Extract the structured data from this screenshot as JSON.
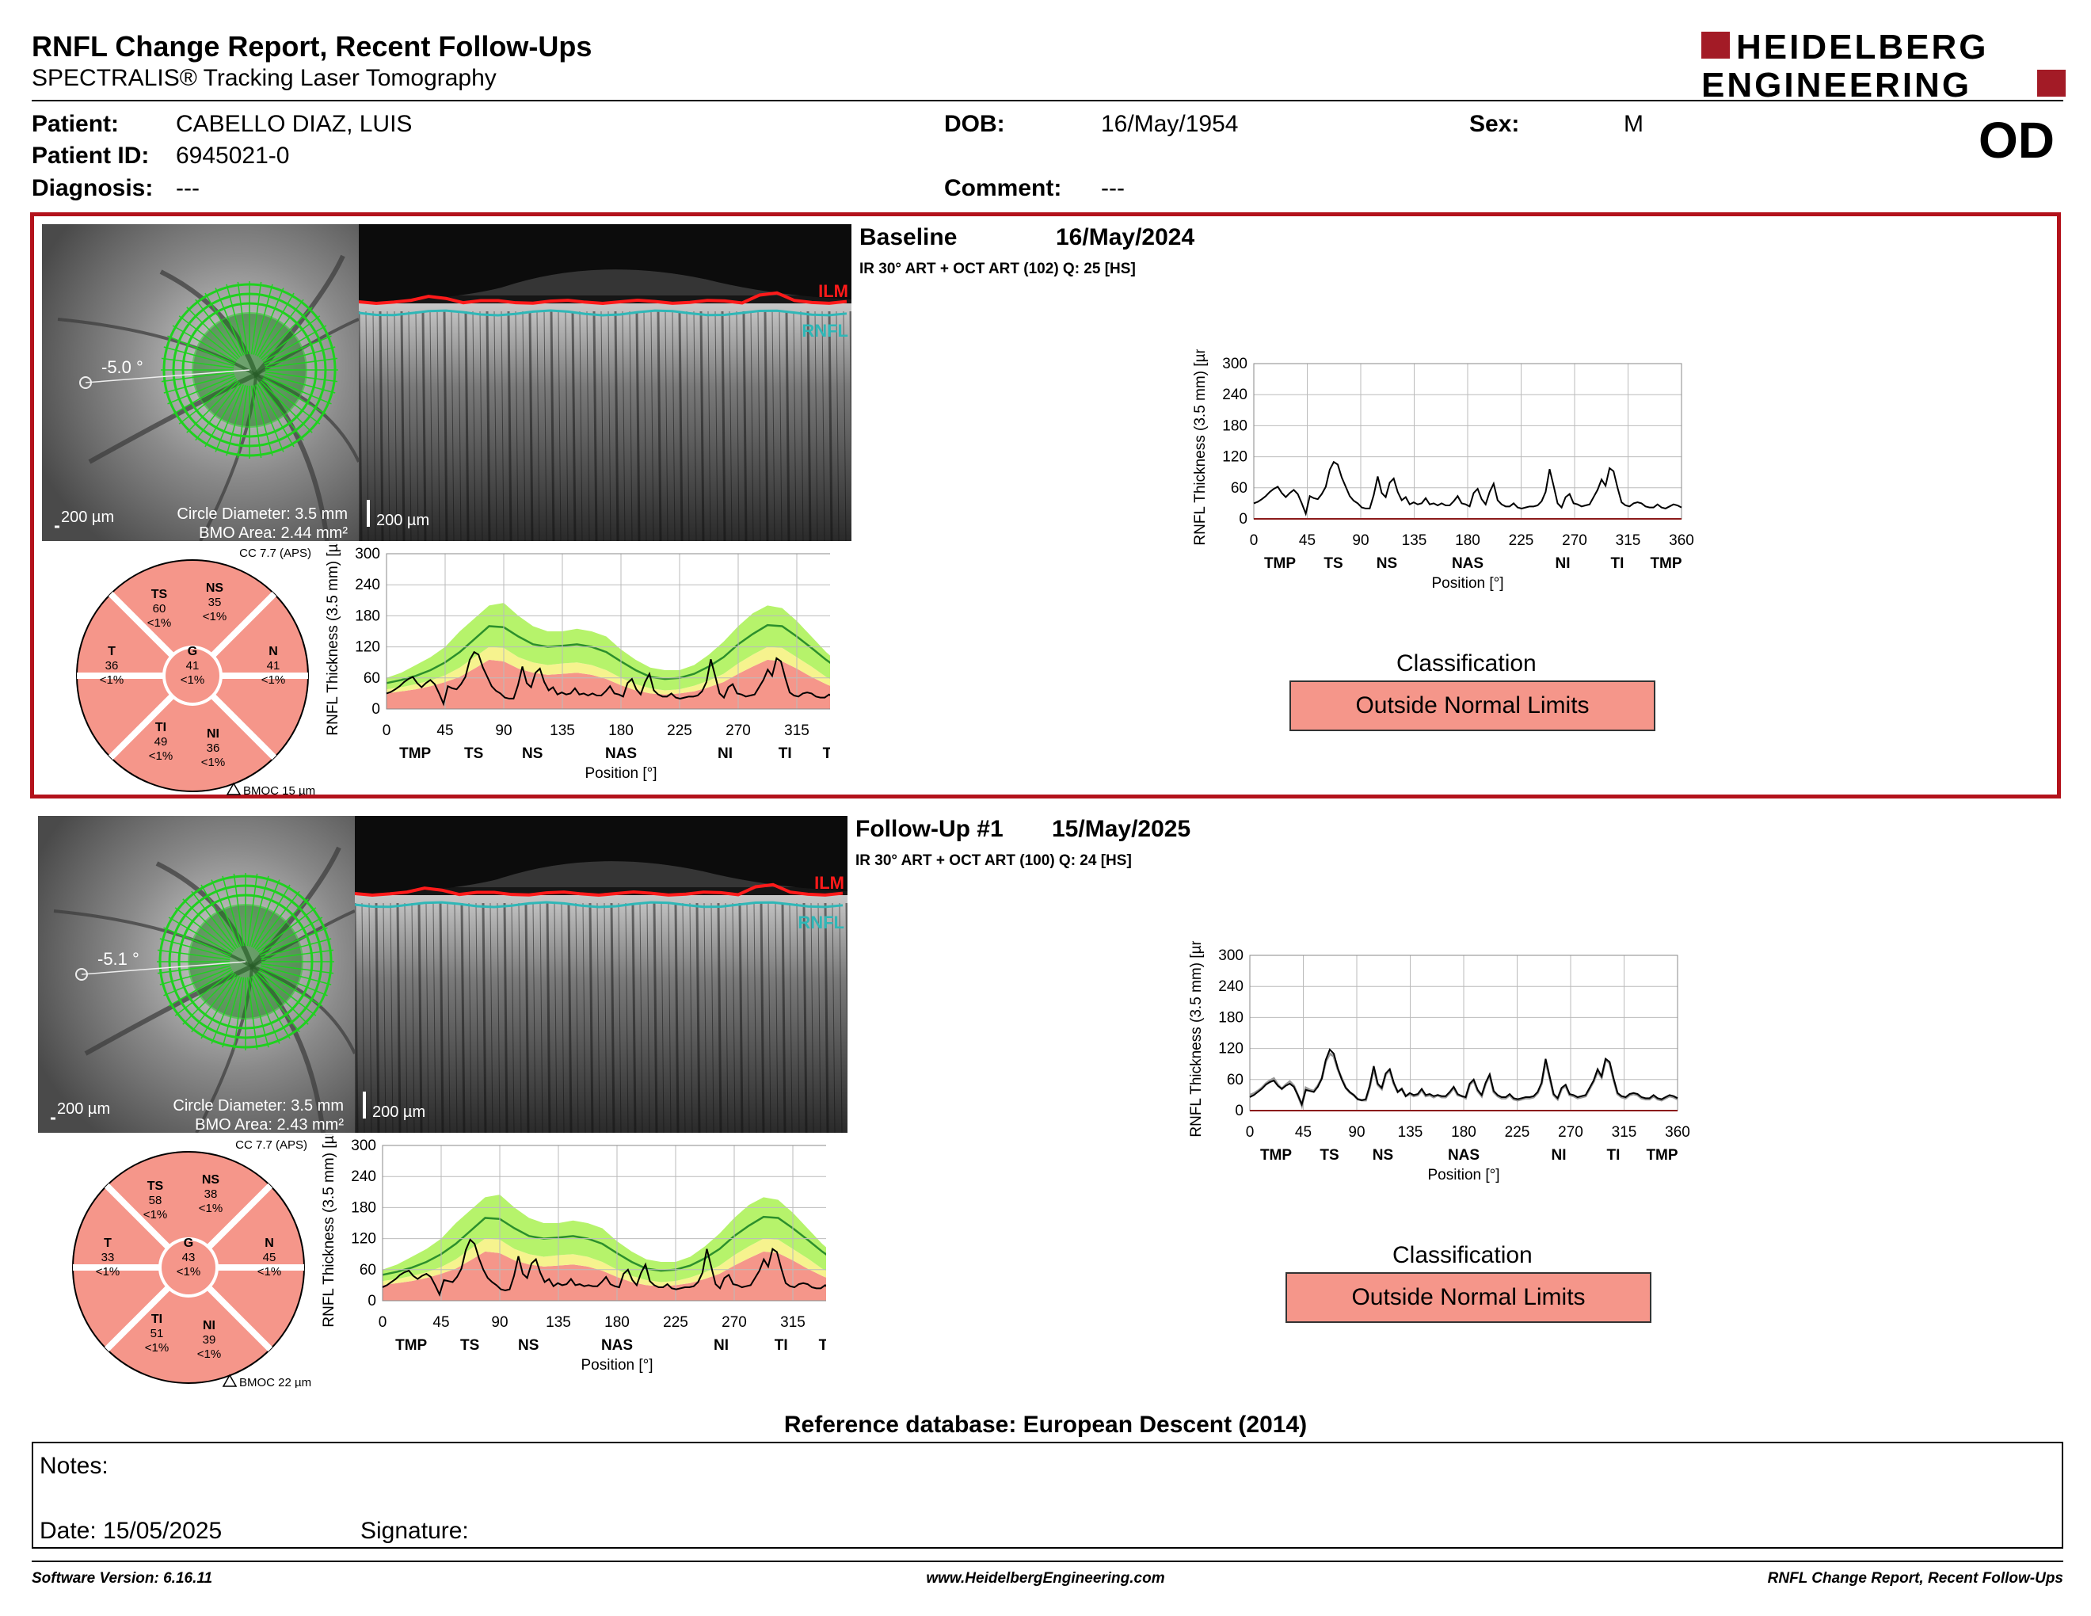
{
  "header": {
    "title": "RNFL Change Report, Recent Follow-Ups",
    "subtitle": "SPECTRALIS® Tracking Laser Tomography",
    "logo_line1": "HEIDELBERG",
    "logo_line2": "ENGINEERING",
    "eye": "OD"
  },
  "patient": {
    "patient_label": "Patient:",
    "patient_value": "CABELLO DIAZ, LUIS",
    "id_label": "Patient ID:",
    "id_value": "6945021-0",
    "diagnosis_label": "Diagnosis:",
    "diagnosis_value": "---",
    "dob_label": "DOB:",
    "dob_value": "16/May/1954",
    "comment_label": "Comment:",
    "comment_value": "---",
    "sex_label": "Sex:",
    "sex_value": "M"
  },
  "visits": [
    {
      "title": "Baseline",
      "date": "16/May/2024",
      "scan": "IR 30° ART + OCT ART (102) Q: 25 [HS]",
      "angle": "-5.0 °",
      "scale_fundus": "200 µm",
      "scale_oct": "200 µm",
      "circle": "Circle Diameter: 3.5 mm",
      "bmo": "BMO Area: 2.44 mm²",
      "cc": "CC 7.7 (APS)",
      "bmoc": "BMOC 15 µm",
      "ilm": "ILM",
      "rnfl": "RNFL",
      "sectors": {
        "TS": {
          "v": "60",
          "p": "<1%"
        },
        "NS": {
          "v": "35",
          "p": "<1%"
        },
        "T": {
          "v": "36",
          "p": "<1%"
        },
        "G": {
          "v": "41",
          "p": "<1%"
        },
        "N": {
          "v": "41",
          "p": "<1%"
        },
        "TI": {
          "v": "49",
          "p": "<1%"
        },
        "NI": {
          "v": "36",
          "p": "<1%"
        }
      },
      "classification_label": "Classification",
      "classification": "Outside Normal Limits",
      "thickness": [
        30,
        33,
        38,
        44,
        52,
        58,
        62,
        50,
        42,
        50,
        56,
        48,
        30,
        10,
        44,
        40,
        38,
        48,
        62,
        95,
        110,
        105,
        80,
        62,
        44,
        35,
        30,
        22,
        20,
        20,
        46,
        82,
        50,
        42,
        70,
        78,
        52,
        36,
        42,
        28,
        32,
        28,
        30,
        40,
        28,
        30,
        26,
        30,
        26,
        26,
        34,
        44,
        30,
        28,
        24,
        50,
        58,
        38,
        28,
        52,
        68,
        36,
        28,
        24,
        24,
        30,
        22,
        20,
        22,
        24,
        24,
        26,
        34,
        52,
        96,
        64,
        30,
        22,
        42,
        48,
        30,
        28,
        24,
        26,
        28,
        42,
        56,
        76,
        64,
        98,
        92,
        60,
        32,
        26,
        24,
        30,
        32,
        30,
        24,
        22,
        22,
        28,
        22,
        20,
        24,
        28,
        26,
        22
      ]
    },
    {
      "title": "Follow-Up #1",
      "date": "15/May/2025",
      "scan": "IR 30° ART + OCT ART (100) Q: 24 [HS]",
      "angle": "-5.1 °",
      "scale_fundus": "200 µm",
      "scale_oct": "200 µm",
      "circle": "Circle Diameter: 3.5 mm",
      "bmo": "BMO Area: 2.43 mm²",
      "cc": "CC 7.7 (APS)",
      "bmoc": "BMOC 22 µm",
      "ilm": "ILM",
      "rnfl": "RNFL",
      "sectors": {
        "TS": {
          "v": "58",
          "p": "<1%"
        },
        "NS": {
          "v": "38",
          "p": "<1%"
        },
        "T": {
          "v": "33",
          "p": "<1%"
        },
        "G": {
          "v": "43",
          "p": "<1%"
        },
        "N": {
          "v": "45",
          "p": "<1%"
        },
        "TI": {
          "v": "51",
          "p": "<1%"
        },
        "NI": {
          "v": "39",
          "p": "<1%"
        }
      },
      "classification_label": "Classification",
      "classification": "Outside Normal Limits",
      "thickness": [
        26,
        30,
        36,
        42,
        50,
        55,
        58,
        48,
        42,
        48,
        52,
        46,
        30,
        12,
        40,
        38,
        36,
        46,
        62,
        98,
        118,
        110,
        82,
        60,
        44,
        36,
        30,
        22,
        20,
        22,
        48,
        86,
        52,
        44,
        72,
        80,
        54,
        36,
        42,
        28,
        34,
        30,
        32,
        42,
        30,
        32,
        28,
        30,
        28,
        28,
        36,
        46,
        32,
        28,
        26,
        52,
        60,
        40,
        30,
        54,
        70,
        38,
        30,
        26,
        26,
        32,
        24,
        22,
        24,
        26,
        26,
        28,
        36,
        54,
        100,
        66,
        32,
        24,
        44,
        50,
        32,
        30,
        26,
        28,
        30,
        44,
        58,
        80,
        66,
        100,
        94,
        62,
        34,
        28,
        26,
        32,
        34,
        32,
        26,
        24,
        24,
        30,
        24,
        22,
        26,
        30,
        28,
        24
      ]
    }
  ],
  "chart_axes": {
    "ylabel": "RNFL Thickness (3.5 mm) [µm]",
    "xlabel": "Position [°]",
    "yticks": [
      "0",
      "60",
      "120",
      "180",
      "240",
      "300"
    ],
    "xticks": [
      "0",
      "45",
      "90",
      "135",
      "180",
      "225",
      "270",
      "315",
      "360"
    ],
    "left_regions": [
      "TMP",
      "TS",
      "NS",
      "NAS",
      "NI",
      "TI",
      "TMP"
    ],
    "right_regions": [
      "TMP",
      "TS",
      "NS",
      "NAS",
      "NI",
      "TI",
      "TMP"
    ]
  },
  "normative": {
    "green_upper": [
      60,
      70,
      85,
      100,
      120,
      150,
      175,
      200,
      205,
      180,
      160,
      150,
      150,
      155,
      150,
      140,
      115,
      95,
      80,
      75,
      75,
      85,
      105,
      130,
      160,
      185,
      200,
      195,
      170,
      140,
      110,
      85,
      62
    ],
    "median": [
      50,
      56,
      64,
      75,
      90,
      110,
      135,
      160,
      158,
      140,
      125,
      120,
      122,
      125,
      120,
      110,
      92,
      75,
      62,
      58,
      60,
      68,
      82,
      100,
      125,
      145,
      162,
      160,
      140,
      118,
      95,
      75,
      55
    ],
    "yellow_lower": [
      38,
      42,
      48,
      55,
      65,
      80,
      100,
      120,
      118,
      100,
      90,
      85,
      88,
      90,
      85,
      75,
      60,
      48,
      40,
      36,
      38,
      45,
      55,
      68,
      88,
      105,
      120,
      118,
      100,
      82,
      62,
      48,
      35
    ],
    "red_lower": [
      30,
      34,
      38,
      44,
      52,
      62,
      78,
      95,
      92,
      78,
      70,
      66,
      68,
      70,
      66,
      58,
      46,
      36,
      30,
      28,
      30,
      34,
      42,
      52,
      68,
      82,
      95,
      92,
      78,
      62,
      48,
      36,
      26
    ]
  },
  "reference": "Reference database: European Descent (2014)",
  "notes": {
    "notes_label": "Notes:",
    "date_label": "Date: 15/05/2025",
    "signature_label": "Signature:"
  },
  "footer": {
    "software": "Software Version: 6.16.11",
    "website": "www.HeidelbergEngineering.com",
    "report": "RNFL Change Report, Recent Follow-Ups"
  },
  "colors": {
    "frame_red": "#b3121b",
    "outside_limits": "#f5968a",
    "normal_green": "#b6f36b",
    "borderline_yellow": "#f6f38e",
    "median_green": "#2c8f2c",
    "ilm_red": "#ff1a1a",
    "rnfl_cyan": "#2fb7b7"
  }
}
